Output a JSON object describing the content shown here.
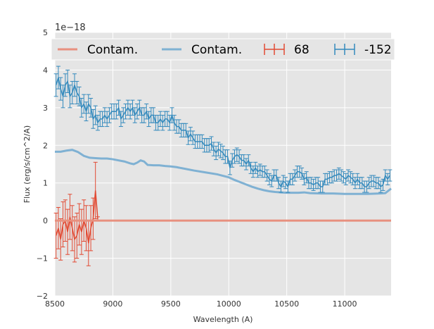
{
  "chart_data": {
    "type": "line",
    "title": "",
    "xlabel": "Wavelength (A)",
    "ylabel": "Flux (erg/s/cm^2/A)",
    "y_offset_text": "1e−18",
    "xlim": [
      8500,
      11400
    ],
    "ylim": [
      -2,
      5
    ],
    "xticks": [
      8500,
      9000,
      9500,
      10000,
      10500,
      11000
    ],
    "yticks": [
      -2,
      -1,
      0,
      1,
      2,
      3,
      4,
      5
    ],
    "grid": true,
    "legend_position": "top",
    "colors": {
      "red": "#e24a33",
      "red_light": "#e8907f",
      "blue": "#348abd",
      "blue_light": "#7fb1d3",
      "background": "#e5e5e5",
      "grid": "#ffffff"
    },
    "legend": [
      {
        "label": "Contam.",
        "kind": "line",
        "color": "#e8907f"
      },
      {
        "label": "Contam.",
        "kind": "line",
        "color": "#7fb1d3"
      },
      {
        "label": "68",
        "kind": "errorbar",
        "color": "#e24a33"
      },
      {
        "label": "-152",
        "kind": "errorbar",
        "color": "#348abd"
      }
    ],
    "series": [
      {
        "name": "Contam.",
        "kind": "line",
        "color": "#e8907f",
        "x": [
          8500,
          8880,
          11400
        ],
        "y": [
          0.0,
          0.0,
          0.0
        ]
      },
      {
        "name": "Contam.",
        "kind": "line",
        "color": "#7fb1d3",
        "x": [
          8500,
          8550,
          8600,
          8650,
          8700,
          8750,
          8800,
          8850,
          8900,
          8950,
          9000,
          9050,
          9100,
          9150,
          9180,
          9210,
          9240,
          9270,
          9300,
          9350,
          9400,
          9450,
          9500,
          9550,
          9600,
          9700,
          9800,
          9900,
          10000,
          10050,
          10100,
          10150,
          10200,
          10250,
          10300,
          10350,
          10400,
          10450,
          10500,
          10550,
          10600,
          10650,
          10700,
          10800,
          10900,
          11000,
          11100,
          11200,
          11300,
          11350,
          11400
        ],
        "y": [
          1.83,
          1.83,
          1.86,
          1.88,
          1.82,
          1.72,
          1.67,
          1.66,
          1.65,
          1.65,
          1.63,
          1.6,
          1.57,
          1.52,
          1.5,
          1.54,
          1.6,
          1.57,
          1.48,
          1.47,
          1.47,
          1.45,
          1.44,
          1.42,
          1.39,
          1.33,
          1.28,
          1.23,
          1.15,
          1.08,
          1.02,
          0.96,
          0.9,
          0.85,
          0.81,
          0.78,
          0.76,
          0.75,
          0.74,
          0.74,
          0.74,
          0.75,
          0.73,
          0.72,
          0.72,
          0.71,
          0.71,
          0.71,
          0.72,
          0.73,
          0.85
        ]
      },
      {
        "name": "68",
        "kind": "errorbar",
        "color": "#e24a33",
        "x": [
          8510,
          8530,
          8550,
          8570,
          8590,
          8610,
          8630,
          8650,
          8670,
          8690,
          8710,
          8730,
          8750,
          8770,
          8790,
          8810,
          8830,
          8850,
          8870
        ],
        "y": [
          -0.4,
          -0.2,
          -0.5,
          -0.1,
          0.0,
          -0.3,
          0.1,
          -0.2,
          -0.5,
          -0.4,
          -0.1,
          -0.3,
          0.0,
          -0.2,
          -0.6,
          -0.2,
          0.05,
          0.8,
          0.05
        ],
        "err": [
          0.6,
          0.55,
          0.55,
          0.6,
          0.55,
          0.6,
          0.6,
          0.6,
          0.6,
          0.6,
          0.55,
          0.6,
          0.55,
          0.6,
          0.6,
          0.6,
          0.55,
          0.75,
          0.05
        ]
      },
      {
        "name": "-152",
        "kind": "errorbar",
        "color": "#348abd",
        "x": [
          8510,
          8530,
          8550,
          8570,
          8590,
          8610,
          8630,
          8650,
          8670,
          8690,
          8710,
          8730,
          8750,
          8770,
          8790,
          8810,
          8830,
          8850,
          8870,
          8890,
          8910,
          8930,
          8950,
          8970,
          8990,
          9010,
          9030,
          9050,
          9070,
          9090,
          9110,
          9130,
          9150,
          9170,
          9190,
          9210,
          9230,
          9250,
          9270,
          9290,
          9310,
          9330,
          9350,
          9370,
          9390,
          9410,
          9430,
          9450,
          9470,
          9490,
          9510,
          9530,
          9550,
          9570,
          9590,
          9610,
          9630,
          9650,
          9670,
          9690,
          9710,
          9730,
          9750,
          9770,
          9790,
          9810,
          9830,
          9850,
          9870,
          9890,
          9910,
          9930,
          9950,
          9970,
          9990,
          10010,
          10030,
          10050,
          10070,
          10090,
          10110,
          10130,
          10150,
          10170,
          10190,
          10210,
          10230,
          10250,
          10270,
          10290,
          10310,
          10330,
          10350,
          10370,
          10390,
          10410,
          10430,
          10450,
          10470,
          10490,
          10510,
          10530,
          10550,
          10570,
          10590,
          10610,
          10630,
          10650,
          10670,
          10690,
          10710,
          10730,
          10750,
          10770,
          10790,
          10810,
          10830,
          10850,
          10870,
          10890,
          10910,
          10930,
          10950,
          10970,
          10990,
          11010,
          11030,
          11050,
          11070,
          11090,
          11110,
          11130,
          11150,
          11170,
          11190,
          11210,
          11230,
          11250,
          11270,
          11290,
          11310,
          11330,
          11350,
          11370,
          11390
        ],
        "y": [
          3.6,
          3.8,
          3.5,
          3.3,
          3.6,
          3.7,
          3.3,
          3.4,
          3.6,
          3.4,
          3.3,
          3.0,
          3.1,
          2.9,
          3.1,
          3.0,
          2.7,
          2.8,
          2.6,
          2.7,
          2.7,
          2.8,
          2.7,
          2.8,
          2.9,
          2.9,
          2.9,
          3.0,
          2.7,
          2.8,
          2.9,
          3.0,
          2.9,
          3.0,
          2.8,
          2.9,
          3.0,
          2.8,
          2.8,
          2.9,
          2.7,
          2.8,
          2.8,
          2.6,
          2.6,
          2.7,
          2.6,
          2.7,
          2.7,
          2.6,
          2.8,
          2.6,
          2.5,
          2.5,
          2.4,
          2.4,
          2.4,
          2.2,
          2.3,
          2.2,
          2.1,
          2.1,
          2.1,
          2.1,
          2.0,
          2.0,
          2.0,
          2.05,
          1.9,
          1.8,
          1.9,
          1.85,
          1.8,
          1.7,
          1.7,
          1.4,
          1.6,
          1.7,
          1.75,
          1.7,
          1.6,
          1.6,
          1.5,
          1.6,
          1.4,
          1.3,
          1.4,
          1.3,
          1.35,
          1.3,
          1.3,
          1.2,
          1.1,
          1.05,
          1.2,
          1.2,
          1.0,
          0.9,
          1.05,
          1.0,
          0.9,
          1.1,
          1.1,
          1.2,
          1.3,
          1.3,
          1.25,
          1.1,
          1.15,
          1.0,
          1.0,
          0.95,
          1.0,
          1.0,
          0.9,
          0.9,
          1.1,
          1.1,
          1.15,
          1.15,
          1.2,
          1.2,
          1.25,
          1.2,
          1.15,
          1.1,
          1.2,
          1.15,
          1.1,
          1.0,
          1.1,
          1.0,
          1.0,
          0.9,
          0.9,
          1.0,
          1.05,
          1.05,
          1.0,
          1.0,
          0.9,
          0.95,
          1.2,
          1.1,
          1.2
        ],
        "err": [
          0.3,
          0.3,
          0.3,
          0.3,
          0.3,
          0.3,
          0.3,
          0.3,
          0.3,
          0.3,
          0.25,
          0.25,
          0.25,
          0.25,
          0.25,
          0.25,
          0.25,
          0.25,
          0.2,
          0.2,
          0.2,
          0.2,
          0.2,
          0.2,
          0.2,
          0.2,
          0.2,
          0.2,
          0.2,
          0.2,
          0.2,
          0.2,
          0.2,
          0.2,
          0.2,
          0.2,
          0.2,
          0.2,
          0.2,
          0.2,
          0.2,
          0.2,
          0.2,
          0.2,
          0.2,
          0.2,
          0.2,
          0.2,
          0.2,
          0.2,
          0.2,
          0.2,
          0.18,
          0.18,
          0.18,
          0.18,
          0.18,
          0.18,
          0.18,
          0.18,
          0.18,
          0.18,
          0.18,
          0.18,
          0.18,
          0.18,
          0.18,
          0.18,
          0.18,
          0.18,
          0.18,
          0.18,
          0.18,
          0.18,
          0.18,
          0.18,
          0.18,
          0.18,
          0.18,
          0.18,
          0.15,
          0.15,
          0.15,
          0.15,
          0.15,
          0.15,
          0.15,
          0.15,
          0.15,
          0.15,
          0.15,
          0.15,
          0.15,
          0.15,
          0.15,
          0.15,
          0.15,
          0.15,
          0.15,
          0.15,
          0.15,
          0.15,
          0.15,
          0.15,
          0.15,
          0.15,
          0.15,
          0.15,
          0.15,
          0.15,
          0.15,
          0.15,
          0.15,
          0.15,
          0.15,
          0.15,
          0.15,
          0.15,
          0.15,
          0.15,
          0.15,
          0.15,
          0.15,
          0.15,
          0.15,
          0.15,
          0.15,
          0.15,
          0.15,
          0.15,
          0.15,
          0.15,
          0.15,
          0.15,
          0.15,
          0.15,
          0.15,
          0.15,
          0.15,
          0.15,
          0.15,
          0.15,
          0.15,
          0.15,
          0.15
        ]
      }
    ]
  }
}
